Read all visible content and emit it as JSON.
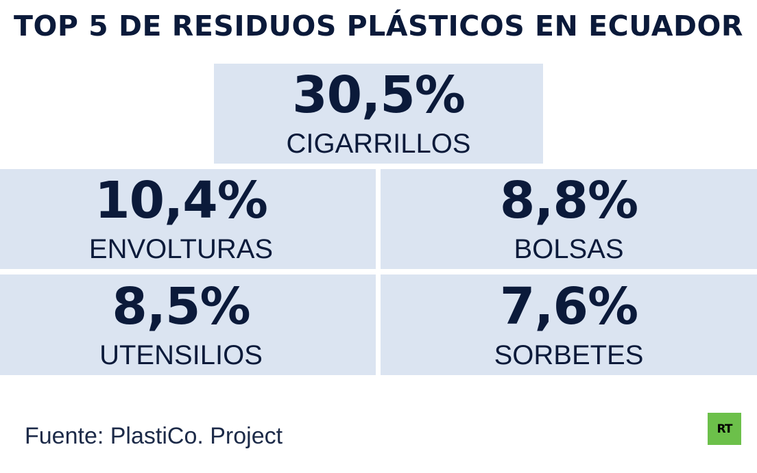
{
  "title": "TOP 5 DE RESIDUOS PLÁSTICOS EN ECUADOR",
  "source": "Fuente: PlastiCo. Project",
  "logo_text": "RT",
  "colors": {
    "background": "#ffffff",
    "cell": "#dbe4f1",
    "text": "#0b1a3a",
    "logo": "#6cc04a"
  },
  "chart_data": {
    "type": "table",
    "title": "TOP 5 DE RESIDUOS PLÁSTICOS EN ECUADOR",
    "unit": "%",
    "items": [
      {
        "label": "CIGARRILLOS",
        "value": 30.5,
        "display": "30,5%"
      },
      {
        "label": "ENVOLTURAS",
        "value": 10.4,
        "display": "10,4%"
      },
      {
        "label": "BOLSAS",
        "value": 8.8,
        "display": "8,8%"
      },
      {
        "label": "UTENSILIOS",
        "value": 8.5,
        "display": "8,5%"
      },
      {
        "label": "SORBETES",
        "value": 7.6,
        "display": "7,6%"
      }
    ]
  }
}
